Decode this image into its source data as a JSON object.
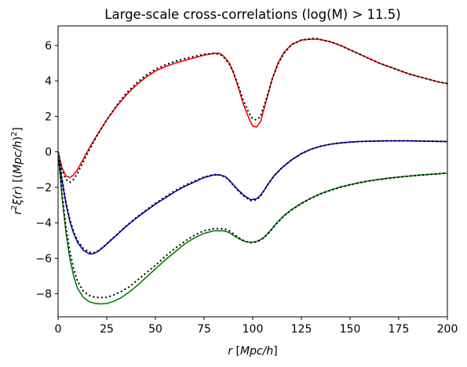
{
  "chart_data": {
    "type": "line",
    "title": "Large-scale cross-correlations (log(M) > 11.5)",
    "xlabel_parts": [
      "r",
      " [",
      "Mpc/h",
      "]"
    ],
    "ylabel_parts": [
      "r",
      "2",
      "ξ(",
      "r",
      ") [(",
      "Mpc/h",
      ")",
      "2",
      "]"
    ],
    "xlim": [
      0,
      200
    ],
    "ylim": [
      -9.3,
      7.1
    ],
    "x_ticks": [
      0,
      25,
      50,
      75,
      100,
      125,
      150,
      175,
      200
    ],
    "y_ticks": [
      -8,
      -6,
      -4,
      -2,
      0,
      2,
      4,
      6
    ],
    "x_tick_labels": [
      "0",
      "25",
      "50",
      "75",
      "100",
      "125",
      "150",
      "175",
      "200"
    ],
    "y_tick_labels": [
      "−8",
      "−6",
      "−4",
      "−2",
      "0",
      "2",
      "4",
      "6"
    ],
    "grid": false,
    "series": [
      {
        "color": "#ff0000",
        "style": "solid",
        "x": [
          0,
          2,
          4,
          6,
          8,
          10,
          13,
          16,
          20,
          25,
          30,
          35,
          40,
          45,
          50,
          55,
          60,
          65,
          70,
          75,
          80,
          83,
          85,
          88,
          90,
          93,
          95,
          98,
          100,
          102,
          104,
          106,
          108,
          110,
          113,
          116,
          120,
          125,
          130,
          133,
          136,
          140,
          145,
          150,
          155,
          160,
          165,
          170,
          175,
          180,
          185,
          190,
          195,
          200
        ],
        "y": [
          0.0,
          -0.9,
          -1.35,
          -1.45,
          -1.3,
          -1.0,
          -0.4,
          0.2,
          0.95,
          1.8,
          2.55,
          3.2,
          3.75,
          4.2,
          4.55,
          4.8,
          5.0,
          5.15,
          5.3,
          5.45,
          5.55,
          5.55,
          5.4,
          5.0,
          4.5,
          3.5,
          2.75,
          1.9,
          1.45,
          1.4,
          1.7,
          2.5,
          3.3,
          4.1,
          5.0,
          5.6,
          6.05,
          6.3,
          6.35,
          6.35,
          6.3,
          6.2,
          6.0,
          5.75,
          5.5,
          5.25,
          5.0,
          4.8,
          4.6,
          4.4,
          4.25,
          4.1,
          3.95,
          3.85
        ]
      },
      {
        "color": "#000000",
        "style": "dotted",
        "x": [
          0,
          2,
          4,
          6,
          8,
          10,
          13,
          16,
          20,
          25,
          30,
          35,
          40,
          45,
          50,
          55,
          60,
          65,
          70,
          75,
          80,
          83,
          85,
          88,
          90,
          93,
          95,
          98,
          100,
          102,
          104,
          106,
          108,
          110,
          113,
          116,
          120,
          125,
          130,
          133,
          136,
          140,
          145,
          150,
          155,
          160,
          165,
          170,
          175,
          180,
          185,
          190,
          195,
          200
        ],
        "y": [
          0.0,
          -1.0,
          -1.55,
          -1.72,
          -1.55,
          -1.2,
          -0.55,
          0.1,
          0.9,
          1.8,
          2.6,
          3.3,
          3.85,
          4.3,
          4.65,
          4.9,
          5.1,
          5.25,
          5.38,
          5.5,
          5.55,
          5.5,
          5.35,
          4.95,
          4.5,
          3.6,
          2.95,
          2.2,
          1.85,
          1.8,
          2.0,
          2.65,
          3.35,
          4.1,
          4.95,
          5.55,
          6.05,
          6.3,
          6.38,
          6.38,
          6.3,
          6.2,
          6.0,
          5.75,
          5.5,
          5.25,
          5.0,
          4.8,
          4.6,
          4.4,
          4.25,
          4.1,
          3.95,
          3.85
        ]
      },
      {
        "color": "#0000cc",
        "style": "solid",
        "x": [
          0,
          2,
          4,
          6,
          8,
          10,
          13,
          16,
          18,
          20,
          23,
          26,
          30,
          35,
          40,
          45,
          50,
          55,
          60,
          65,
          70,
          75,
          80,
          83,
          86,
          88,
          90,
          93,
          96,
          99,
          102,
          104,
          106,
          108,
          111,
          115,
          120,
          125,
          130,
          135,
          140,
          145,
          150,
          155,
          160,
          165,
          170,
          175,
          180,
          185,
          190,
          195,
          200
        ],
        "y": [
          0.0,
          -1.6,
          -2.9,
          -3.9,
          -4.6,
          -5.1,
          -5.55,
          -5.75,
          -5.75,
          -5.65,
          -5.4,
          -5.1,
          -4.7,
          -4.2,
          -3.75,
          -3.35,
          -2.95,
          -2.6,
          -2.25,
          -1.95,
          -1.7,
          -1.45,
          -1.3,
          -1.3,
          -1.4,
          -1.6,
          -1.85,
          -2.2,
          -2.5,
          -2.7,
          -2.65,
          -2.45,
          -2.15,
          -1.8,
          -1.35,
          -0.9,
          -0.45,
          -0.1,
          0.15,
          0.32,
          0.43,
          0.5,
          0.55,
          0.58,
          0.6,
          0.61,
          0.62,
          0.62,
          0.62,
          0.61,
          0.6,
          0.59,
          0.58
        ]
      },
      {
        "color": "#000000",
        "style": "dotted",
        "x": [
          0,
          2,
          4,
          6,
          8,
          10,
          13,
          16,
          18,
          20,
          23,
          26,
          30,
          35,
          40,
          45,
          50,
          55,
          60,
          65,
          70,
          75,
          80,
          83,
          86,
          88,
          90,
          93,
          96,
          99,
          102,
          104,
          106,
          108,
          111,
          115,
          120,
          125,
          130,
          135,
          140,
          145,
          150,
          155,
          160,
          165,
          170,
          175,
          180,
          185,
          190,
          195,
          200
        ],
        "y": [
          0.0,
          -1.5,
          -2.8,
          -3.8,
          -4.5,
          -5.0,
          -5.45,
          -5.65,
          -5.7,
          -5.62,
          -5.38,
          -5.08,
          -4.68,
          -4.18,
          -3.72,
          -3.3,
          -2.9,
          -2.55,
          -2.2,
          -1.9,
          -1.65,
          -1.42,
          -1.28,
          -1.3,
          -1.42,
          -1.62,
          -1.88,
          -2.25,
          -2.55,
          -2.75,
          -2.7,
          -2.48,
          -2.15,
          -1.8,
          -1.35,
          -0.9,
          -0.45,
          -0.1,
          0.15,
          0.32,
          0.43,
          0.5,
          0.55,
          0.58,
          0.6,
          0.61,
          0.62,
          0.62,
          0.62,
          0.61,
          0.6,
          0.59,
          0.58
        ]
      },
      {
        "color": "#008000",
        "style": "solid",
        "x": [
          0,
          2,
          4,
          6,
          8,
          10,
          13,
          16,
          19,
          22,
          25,
          28,
          32,
          36,
          40,
          45,
          50,
          55,
          60,
          65,
          70,
          75,
          80,
          85,
          88,
          90,
          93,
          96,
          99,
          102,
          104,
          106,
          109,
          112,
          116,
          120,
          125,
          130,
          135,
          140,
          145,
          150,
          155,
          160,
          165,
          170,
          175,
          180,
          185,
          190,
          195,
          200
        ],
        "y": [
          0.0,
          -2.5,
          -4.5,
          -6.0,
          -7.0,
          -7.7,
          -8.2,
          -8.45,
          -8.55,
          -8.57,
          -8.55,
          -8.45,
          -8.25,
          -7.95,
          -7.6,
          -7.1,
          -6.6,
          -6.1,
          -5.65,
          -5.2,
          -4.85,
          -4.6,
          -4.45,
          -4.45,
          -4.55,
          -4.7,
          -4.9,
          -5.05,
          -5.1,
          -5.05,
          -4.95,
          -4.8,
          -4.45,
          -4.05,
          -3.6,
          -3.25,
          -2.9,
          -2.6,
          -2.35,
          -2.15,
          -1.98,
          -1.85,
          -1.73,
          -1.63,
          -1.55,
          -1.48,
          -1.42,
          -1.37,
          -1.32,
          -1.28,
          -1.24,
          -1.2
        ]
      },
      {
        "color": "#000000",
        "style": "dotted",
        "x": [
          0,
          2,
          4,
          6,
          8,
          10,
          13,
          16,
          19,
          22,
          25,
          28,
          32,
          36,
          40,
          45,
          50,
          55,
          60,
          65,
          70,
          75,
          80,
          85,
          88,
          90,
          93,
          96,
          99,
          102,
          104,
          106,
          109,
          112,
          116,
          120,
          125,
          130,
          135,
          140,
          145,
          150,
          155,
          160,
          165,
          170,
          175,
          180,
          185,
          190,
          195,
          200
        ],
        "y": [
          0.0,
          -2.3,
          -4.2,
          -5.6,
          -6.6,
          -7.3,
          -7.85,
          -8.1,
          -8.2,
          -8.22,
          -8.2,
          -8.1,
          -7.9,
          -7.65,
          -7.3,
          -6.85,
          -6.4,
          -5.9,
          -5.45,
          -5.05,
          -4.7,
          -4.45,
          -4.33,
          -4.33,
          -4.45,
          -4.62,
          -4.85,
          -5.05,
          -5.12,
          -5.08,
          -4.98,
          -4.82,
          -4.48,
          -4.08,
          -3.62,
          -3.27,
          -2.92,
          -2.62,
          -2.37,
          -2.17,
          -2.0,
          -1.86,
          -1.74,
          -1.64,
          -1.56,
          -1.49,
          -1.43,
          -1.37,
          -1.32,
          -1.28,
          -1.24,
          -1.2
        ]
      }
    ]
  }
}
